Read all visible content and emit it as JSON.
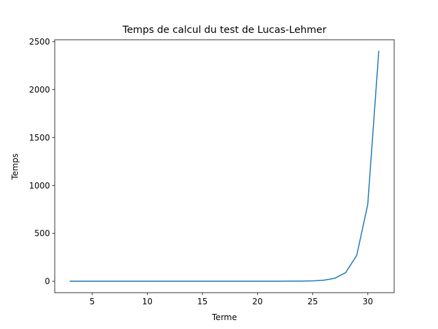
{
  "chart_data": {
    "type": "line",
    "title": "Temps de calcul du test de Lucas-Lehmer",
    "xlabel": "Terme",
    "ylabel": "Temps",
    "xlim": [
      1.6,
      32.4
    ],
    "ylim": [
      -120,
      2520
    ],
    "xticks": [
      5,
      10,
      15,
      20,
      25,
      30
    ],
    "yticks": [
      0,
      500,
      1000,
      1500,
      2000,
      2500
    ],
    "grid": false,
    "series": [
      {
        "color": "#1f77b4",
        "x": [
          3,
          4,
          5,
          6,
          7,
          8,
          9,
          10,
          11,
          12,
          13,
          14,
          15,
          16,
          17,
          18,
          19,
          20,
          21,
          22,
          23,
          24,
          25,
          26,
          27,
          28,
          29,
          30,
          31
        ],
        "y": [
          0,
          0,
          0,
          0,
          0,
          0,
          0,
          0,
          0,
          0,
          0,
          0,
          0,
          0,
          0,
          0,
          0,
          0,
          0,
          0.2,
          0.5,
          1,
          3,
          10,
          30,
          90,
          270,
          800,
          2400
        ]
      }
    ]
  }
}
